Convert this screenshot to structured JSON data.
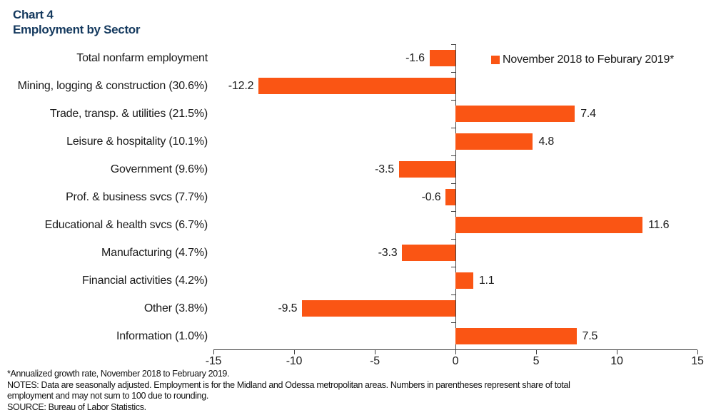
{
  "title": {
    "line1": "Chart 4",
    "line2": "Employment by Sector"
  },
  "legend": {
    "label": "November 2018 to Feburary 2019*",
    "color": "#FA5514"
  },
  "chart_data": {
    "type": "bar",
    "orientation": "horizontal",
    "title": "Chart 4 — Employment by Sector",
    "series_name": "November 2018 to Feburary 2019*",
    "categories": [
      "Total nonfarm employment",
      "Mining, logging & construction (30.6%)",
      "Trade, transp. & utilities (21.5%)",
      "Leisure & hospitality (10.1%)",
      "Government (9.6%)",
      "Prof. & business svcs (7.7%)",
      "Educational & health svcs (6.7%)",
      "Manufacturing (4.7%)",
      "Financial activities (4.2%)",
      "Other (3.8%)",
      "Information (1.0%)"
    ],
    "values": [
      -1.6,
      -12.2,
      7.4,
      4.8,
      -3.5,
      -0.6,
      11.6,
      -3.3,
      1.1,
      -9.5,
      7.5
    ],
    "xlim": [
      -15,
      15
    ],
    "x_ticks": [
      -15,
      -10,
      -5,
      0,
      5,
      10,
      15
    ],
    "x_tick_labels": [
      "-15",
      "-10",
      "-5",
      "0",
      "5",
      "10",
      "15"
    ],
    "bar_color": "#FA5514",
    "grid": false,
    "legend_position": "top-right",
    "data_labels": "outside-end"
  },
  "footnotes": {
    "lines": [
      "*Annualized growth rate, November 2018 to February 2019.",
      "NOTES: Data are seasonally adjusted. Employment is for the Midland and Odessa metropolitan areas. Numbers in parentheses represent share of total",
      "employment and may not sum to 100 due to rounding.",
      "SOURCE: Bureau of Labor Statistics."
    ]
  }
}
